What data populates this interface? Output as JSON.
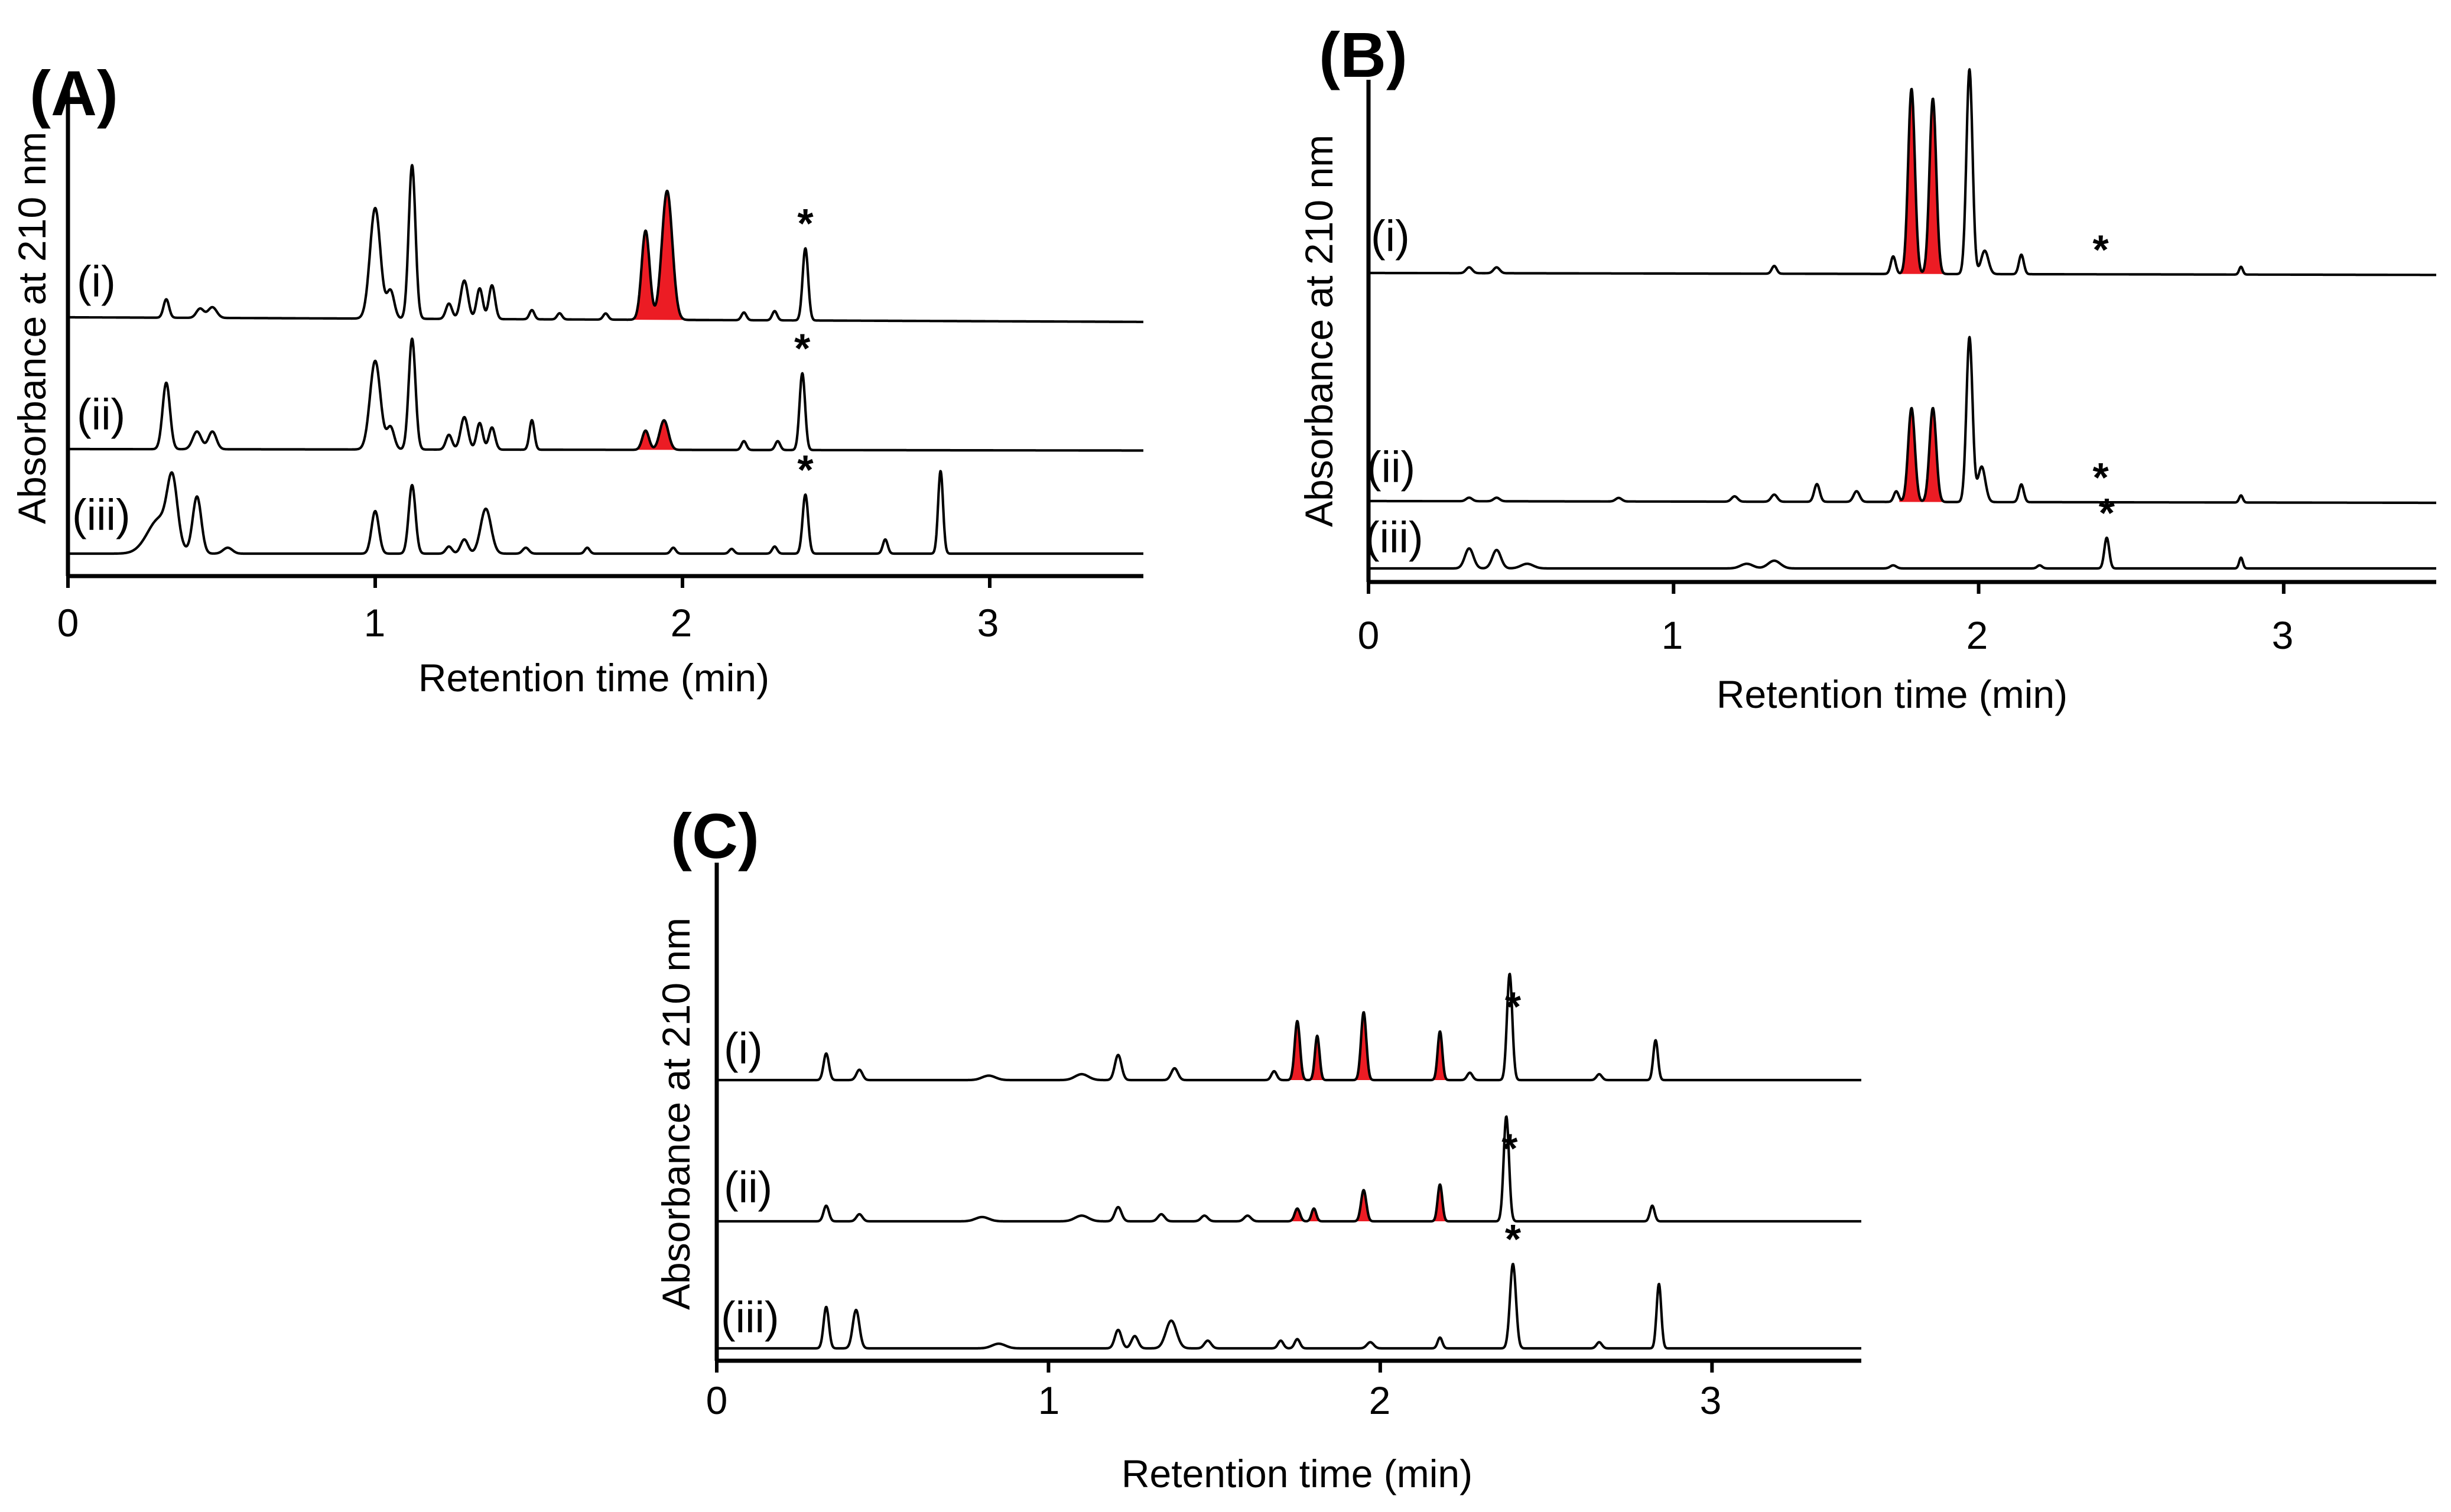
{
  "chart_data": [
    {
      "id": "A",
      "type": "line",
      "panel_label": "(A)",
      "xlabel": "Retention time (min)",
      "ylabel": "Absorbance at 210 nm",
      "xlim": [
        0,
        3.5
      ],
      "xticks": [
        0,
        1,
        2,
        3
      ],
      "x_tick_labels": [
        "0",
        "1",
        "2",
        "3"
      ],
      "series": [
        {
          "name": "(i)",
          "baseline": 0.58,
          "drift": -0.03,
          "peaks": [
            [
              0.32,
              0.12,
              0.009
            ],
            [
              0.43,
              0.06,
              0.012
            ],
            [
              0.47,
              0.07,
              0.014
            ],
            [
              1.0,
              0.72,
              0.017
            ],
            [
              1.05,
              0.18,
              0.012
            ],
            [
              1.12,
              1.0,
              0.011
            ],
            [
              1.24,
              0.1,
              0.01
            ],
            [
              1.29,
              0.25,
              0.012
            ],
            [
              1.34,
              0.2,
              0.01
            ],
            [
              1.38,
              0.22,
              0.01
            ],
            [
              1.51,
              0.06,
              0.008
            ],
            [
              1.6,
              0.04,
              0.008
            ],
            [
              1.75,
              0.04,
              0.008
            ],
            [
              1.88,
              0.58,
              0.013
            ],
            [
              1.95,
              0.84,
              0.017
            ],
            [
              2.2,
              0.05,
              0.008
            ],
            [
              2.3,
              0.06,
              0.008
            ],
            [
              2.4,
              0.47,
              0.009
            ]
          ],
          "highlight": [
            [
              1.84,
              2.0
            ]
          ],
          "stars": [
            2.4
          ]
        },
        {
          "name": "(ii)",
          "baseline": 0.33,
          "drift": -0.01,
          "peaks": [
            [
              0.32,
              0.45,
              0.012
            ],
            [
              0.42,
              0.12,
              0.014
            ],
            [
              0.47,
              0.12,
              0.013
            ],
            [
              1.0,
              0.6,
              0.017
            ],
            [
              1.05,
              0.15,
              0.012
            ],
            [
              1.12,
              0.75,
              0.011
            ],
            [
              1.24,
              0.1,
              0.01
            ],
            [
              1.29,
              0.22,
              0.012
            ],
            [
              1.34,
              0.18,
              0.01
            ],
            [
              1.38,
              0.15,
              0.01
            ],
            [
              1.51,
              0.2,
              0.008
            ],
            [
              1.88,
              0.13,
              0.011
            ],
            [
              1.94,
              0.2,
              0.014
            ],
            [
              2.2,
              0.06,
              0.008
            ],
            [
              2.31,
              0.06,
              0.008
            ],
            [
              2.39,
              0.52,
              0.009
            ]
          ],
          "highlight": [
            [
              1.84,
              1.99
            ]
          ],
          "stars": [
            2.39
          ]
        },
        {
          "name": "(iii)",
          "baseline": 0.1,
          "drift": 0.0,
          "peaks": [
            [
              0.3,
              0.3,
              0.04
            ],
            [
              0.34,
              0.5,
              0.016
            ],
            [
              0.42,
              0.48,
              0.014
            ],
            [
              0.52,
              0.05,
              0.015
            ],
            [
              1.0,
              0.36,
              0.012
            ],
            [
              1.12,
              0.58,
              0.011
            ],
            [
              1.24,
              0.06,
              0.01
            ],
            [
              1.29,
              0.12,
              0.012
            ],
            [
              1.36,
              0.38,
              0.017
            ],
            [
              1.49,
              0.05,
              0.01
            ],
            [
              1.69,
              0.05,
              0.008
            ],
            [
              1.97,
              0.05,
              0.008
            ],
            [
              2.16,
              0.04,
              0.008
            ],
            [
              2.3,
              0.06,
              0.008
            ],
            [
              2.4,
              0.5,
              0.009
            ],
            [
              2.66,
              0.12,
              0.008
            ],
            [
              2.84,
              0.7,
              0.008
            ]
          ],
          "highlight": [],
          "stars": [
            2.4
          ]
        }
      ]
    },
    {
      "id": "B",
      "type": "line",
      "panel_label": "(B)",
      "xlabel": "Retention time (min)",
      "ylabel": "Absorbance at 210 nm",
      "xlim": [
        0,
        3.5
      ],
      "xticks": [
        0,
        1,
        2,
        3
      ],
      "x_tick_labels": [
        "0",
        "1",
        "2",
        "3"
      ],
      "series": [
        {
          "name": "(i)",
          "baseline": 0.6,
          "drift": -0.01,
          "peaks": [
            [
              0.33,
              0.03,
              0.01
            ],
            [
              0.42,
              0.03,
              0.01
            ],
            [
              1.33,
              0.04,
              0.008
            ],
            [
              1.72,
              0.09,
              0.008
            ],
            [
              1.78,
              0.95,
              0.011
            ],
            [
              1.85,
              0.9,
              0.011
            ],
            [
              1.97,
              1.05,
              0.01
            ],
            [
              2.02,
              0.12,
              0.012
            ],
            [
              2.14,
              0.1,
              0.008
            ],
            [
              2.86,
              0.04,
              0.006
            ]
          ],
          "highlight": [
            [
              1.74,
              1.9
            ]
          ],
          "stars": [
            2.4
          ]
        },
        {
          "name": "(ii)",
          "baseline": 0.25,
          "drift": -0.01,
          "peaks": [
            [
              0.33,
              0.02,
              0.01
            ],
            [
              0.42,
              0.02,
              0.01
            ],
            [
              0.82,
              0.02,
              0.01
            ],
            [
              1.2,
              0.03,
              0.01
            ],
            [
              1.33,
              0.04,
              0.01
            ],
            [
              1.47,
              0.1,
              0.009
            ],
            [
              1.6,
              0.06,
              0.01
            ],
            [
              1.73,
              0.06,
              0.008
            ],
            [
              1.78,
              0.53,
              0.011
            ],
            [
              1.85,
              0.53,
              0.011
            ],
            [
              1.97,
              0.93,
              0.01
            ],
            [
              2.01,
              0.2,
              0.012
            ],
            [
              2.14,
              0.1,
              0.008
            ],
            [
              2.86,
              0.04,
              0.006
            ]
          ],
          "highlight": [
            [
              1.74,
              1.9
            ]
          ],
          "stars": [
            2.4
          ]
        },
        {
          "name": "(iii)",
          "baseline": 0.04,
          "drift": 0.0,
          "peaks": [
            [
              0.33,
              0.13,
              0.014
            ],
            [
              0.42,
              0.12,
              0.014
            ],
            [
              0.52,
              0.03,
              0.02
            ],
            [
              1.24,
              0.03,
              0.02
            ],
            [
              1.33,
              0.05,
              0.02
            ],
            [
              1.72,
              0.02,
              0.01
            ],
            [
              2.2,
              0.02,
              0.008
            ],
            [
              2.42,
              0.2,
              0.008
            ],
            [
              2.86,
              0.07,
              0.006
            ]
          ],
          "highlight": [],
          "stars": [
            2.42
          ]
        }
      ]
    },
    {
      "id": "C",
      "type": "line",
      "panel_label": "(C)",
      "xlabel": "Retention time (min)",
      "ylabel": "Absorbance at 210 nm",
      "xlim": [
        0,
        3.45
      ],
      "xticks": [
        0,
        1,
        2,
        3
      ],
      "x_tick_labels": [
        "0",
        "1",
        "2",
        "3"
      ],
      "series": [
        {
          "name": "(i)",
          "baseline": 0.6,
          "drift": 0.0,
          "peaks": [
            [
              0.33,
              0.18,
              0.008
            ],
            [
              0.43,
              0.07,
              0.009
            ],
            [
              0.82,
              0.03,
              0.02
            ],
            [
              1.1,
              0.04,
              0.02
            ],
            [
              1.21,
              0.17,
              0.01
            ],
            [
              1.38,
              0.08,
              0.01
            ],
            [
              1.68,
              0.06,
              0.008
            ],
            [
              1.75,
              0.4,
              0.008
            ],
            [
              1.81,
              0.3,
              0.007
            ],
            [
              1.95,
              0.46,
              0.008
            ],
            [
              2.18,
              0.33,
              0.007
            ],
            [
              2.27,
              0.05,
              0.008
            ],
            [
              2.39,
              0.72,
              0.008
            ],
            [
              2.66,
              0.04,
              0.008
            ],
            [
              2.83,
              0.27,
              0.007
            ]
          ],
          "highlight": [
            [
              1.72,
              1.78
            ],
            [
              1.79,
              1.84
            ],
            [
              1.92,
              1.99
            ],
            [
              2.16,
              2.21
            ]
          ],
          "stars": [
            2.4
          ]
        },
        {
          "name": "(ii)",
          "baseline": 0.31,
          "drift": 0.0,
          "peaks": [
            [
              0.33,
              0.11,
              0.008
            ],
            [
              0.43,
              0.05,
              0.009
            ],
            [
              0.8,
              0.03,
              0.02
            ],
            [
              1.1,
              0.04,
              0.02
            ],
            [
              1.21,
              0.1,
              0.01
            ],
            [
              1.34,
              0.05,
              0.01
            ],
            [
              1.47,
              0.04,
              0.01
            ],
            [
              1.6,
              0.04,
              0.01
            ],
            [
              1.75,
              0.09,
              0.008
            ],
            [
              1.8,
              0.09,
              0.007
            ],
            [
              1.95,
              0.22,
              0.008
            ],
            [
              2.18,
              0.26,
              0.007
            ],
            [
              2.38,
              0.74,
              0.008
            ],
            [
              2.82,
              0.11,
              0.007
            ]
          ],
          "highlight": [
            [
              1.72,
              1.78
            ],
            [
              1.78,
              1.83
            ],
            [
              1.92,
              1.99
            ],
            [
              2.16,
              2.21
            ]
          ],
          "stars": [
            2.39
          ]
        },
        {
          "name": "(iii)",
          "baseline": 0.03,
          "drift": 0.0,
          "peaks": [
            [
              0.33,
              0.27,
              0.008
            ],
            [
              0.42,
              0.25,
              0.01
            ],
            [
              0.85,
              0.03,
              0.02
            ],
            [
              1.21,
              0.12,
              0.01
            ],
            [
              1.26,
              0.08,
              0.01
            ],
            [
              1.37,
              0.18,
              0.016
            ],
            [
              1.48,
              0.05,
              0.01
            ],
            [
              1.7,
              0.05,
              0.008
            ],
            [
              1.75,
              0.06,
              0.008
            ],
            [
              1.97,
              0.04,
              0.01
            ],
            [
              2.18,
              0.07,
              0.007
            ],
            [
              2.4,
              0.55,
              0.009
            ],
            [
              2.66,
              0.04,
              0.008
            ],
            [
              2.84,
              0.42,
              0.007
            ]
          ],
          "highlight": [],
          "stars": [
            2.4
          ]
        }
      ]
    }
  ],
  "colors": {
    "line": "#000000",
    "highlight": "#ec1c24",
    "axis": "#000000"
  }
}
